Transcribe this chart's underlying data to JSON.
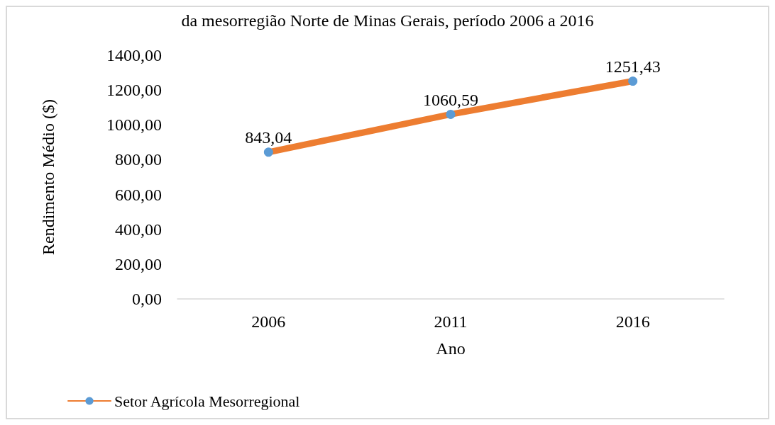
{
  "chart_data": {
    "type": "line",
    "title": "da mesorregião Norte de Minas Gerais, período 2006 a 2016",
    "xlabel": "Ano",
    "ylabel": "Rendimento Médio ($)",
    "categories": [
      "2006",
      "2011",
      "2016"
    ],
    "series": [
      {
        "name": "Setor Agrícola Mesorregional",
        "color": "#ed7d31",
        "colors": [
          "#5b9bd5",
          "#5b9bd5",
          "#5b9bd5"
        ],
        "values": [
          843.04,
          1060.59,
          1251.43
        ],
        "value_labels": [
          "843,04",
          "1060,59",
          "1251,43"
        ]
      }
    ],
    "ylim": [
      0,
      1400
    ],
    "yticks": [
      {
        "value": 0,
        "label": "0,00"
      },
      {
        "value": 200,
        "label": "200,00"
      },
      {
        "value": 400,
        "label": "400,00"
      },
      {
        "value": 600,
        "label": "600,00"
      },
      {
        "value": 800,
        "label": "800,00"
      },
      {
        "value": 1000,
        "label": "1000,00"
      },
      {
        "value": 1200,
        "label": "1200,00"
      },
      {
        "value": 1400,
        "label": "1400,00"
      }
    ],
    "grid": false,
    "legend": "bottom left",
    "marker": "circle",
    "line_style": "solid"
  }
}
